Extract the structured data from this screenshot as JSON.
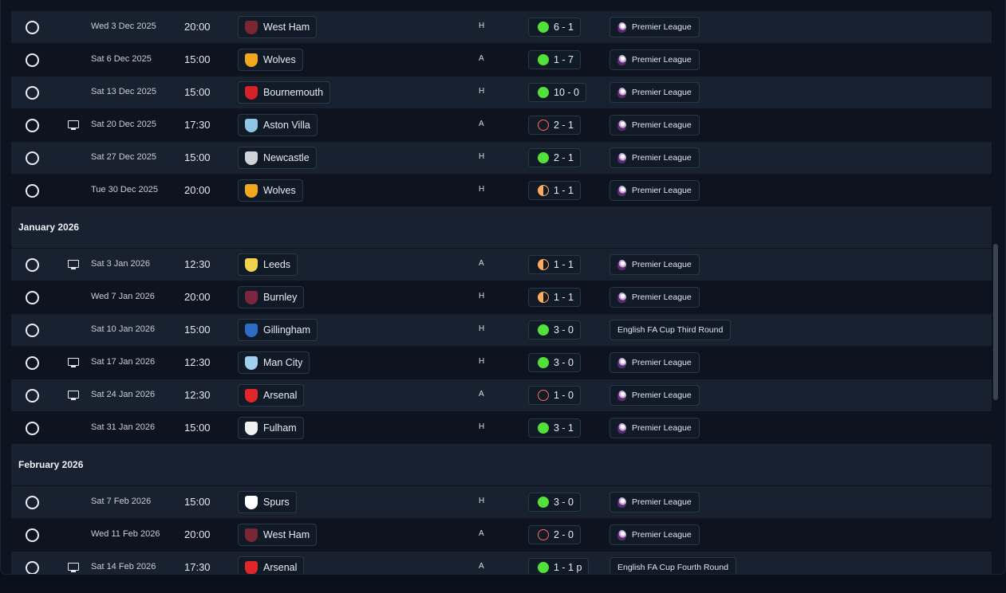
{
  "months": [
    {
      "label": "",
      "rows": [
        {
          "tv": false,
          "date": "Wed 3 Dec 2025",
          "time": "20:00",
          "team": "West Ham",
          "crest": "#7a2635",
          "venue": "H",
          "result": "win",
          "score": "6 - 1",
          "competition": "Premier League",
          "competition_icon": "premier-league-icon"
        },
        {
          "tv": false,
          "date": "Sat 6 Dec 2025",
          "time": "15:00",
          "team": "Wolves",
          "crest": "#f2a81d",
          "venue": "A",
          "result": "win",
          "score": "1 - 7",
          "competition": "Premier League",
          "competition_icon": "premier-league-icon"
        },
        {
          "tv": false,
          "date": "Sat 13 Dec 2025",
          "time": "15:00",
          "team": "Bournemouth",
          "crest": "#d6202a",
          "venue": "H",
          "result": "win",
          "score": "10 - 0",
          "competition": "Premier League",
          "competition_icon": "premier-league-icon"
        },
        {
          "tv": true,
          "date": "Sat 20 Dec 2025",
          "time": "17:30",
          "team": "Aston Villa",
          "crest": "#8fc6e6",
          "venue": "A",
          "result": "loss",
          "score": "2 - 1",
          "competition": "Premier League",
          "competition_icon": "premier-league-icon"
        },
        {
          "tv": false,
          "date": "Sat 27 Dec 2025",
          "time": "15:00",
          "team": "Newcastle",
          "crest": "#cfd3d8",
          "venue": "H",
          "result": "win",
          "score": "2 - 1",
          "competition": "Premier League",
          "competition_icon": "premier-league-icon"
        },
        {
          "tv": false,
          "date": "Tue 30 Dec 2025",
          "time": "20:00",
          "team": "Wolves",
          "crest": "#f2a81d",
          "venue": "H",
          "result": "draw",
          "score": "1 - 1",
          "competition": "Premier League",
          "competition_icon": "premier-league-icon"
        }
      ]
    },
    {
      "label": "January 2026",
      "rows": [
        {
          "tv": true,
          "date": "Sat 3 Jan 2026",
          "time": "12:30",
          "team": "Leeds",
          "crest": "#f3d34a",
          "venue": "A",
          "result": "draw",
          "score": "1 - 1",
          "competition": "Premier League",
          "competition_icon": "premier-league-icon"
        },
        {
          "tv": false,
          "date": "Wed 7 Jan 2026",
          "time": "20:00",
          "team": "Burnley",
          "crest": "#7c2440",
          "venue": "H",
          "result": "draw",
          "score": "1 - 1",
          "competition": "Premier League",
          "competition_icon": "premier-league-icon"
        },
        {
          "tv": false,
          "date": "Sat 10 Jan 2026",
          "time": "15:00",
          "team": "Gillingham",
          "crest": "#2d6bc4",
          "venue": "H",
          "result": "win",
          "score": "3 - 0",
          "competition": "English FA Cup Third Round",
          "competition_icon": ""
        },
        {
          "tv": true,
          "date": "Sat 17 Jan 2026",
          "time": "12:30",
          "team": "Man City",
          "crest": "#9fd0f0",
          "venue": "H",
          "result": "win",
          "score": "3 - 0",
          "competition": "Premier League",
          "competition_icon": "premier-league-icon"
        },
        {
          "tv": true,
          "date": "Sat 24 Jan 2026",
          "time": "12:30",
          "team": "Arsenal",
          "crest": "#e0262b",
          "venue": "A",
          "result": "loss",
          "score": "1 - 0",
          "competition": "Premier League",
          "competition_icon": "premier-league-icon"
        },
        {
          "tv": false,
          "date": "Sat 31 Jan 2026",
          "time": "15:00",
          "team": "Fulham",
          "crest": "#f0f0f0",
          "venue": "H",
          "result": "win",
          "score": "3 - 1",
          "competition": "Premier League",
          "competition_icon": "premier-league-icon"
        }
      ]
    },
    {
      "label": "February 2026",
      "rows": [
        {
          "tv": false,
          "date": "Sat 7 Feb 2026",
          "time": "15:00",
          "team": "Spurs",
          "crest": "#ffffff",
          "venue": "H",
          "result": "win",
          "score": "3 - 0",
          "competition": "Premier League",
          "competition_icon": "premier-league-icon"
        },
        {
          "tv": false,
          "date": "Wed 11 Feb 2026",
          "time": "20:00",
          "team": "West Ham",
          "crest": "#7a2635",
          "venue": "A",
          "result": "loss",
          "score": "2 - 0",
          "competition": "Premier League",
          "competition_icon": "premier-league-icon"
        },
        {
          "tv": true,
          "date": "Sat 14 Feb 2026",
          "time": "17:30",
          "team": "Arsenal",
          "crest": "#e0262b",
          "venue": "A",
          "result": "win",
          "score": "1 - 1 p",
          "competition": "English FA Cup Fourth Round",
          "competition_icon": ""
        }
      ]
    }
  ],
  "colors": {
    "win": "#52e03a",
    "loss": "#ff6a5c",
    "draw": "#ffaa5c",
    "row_shade": "#182130",
    "background": "#0d1420"
  }
}
